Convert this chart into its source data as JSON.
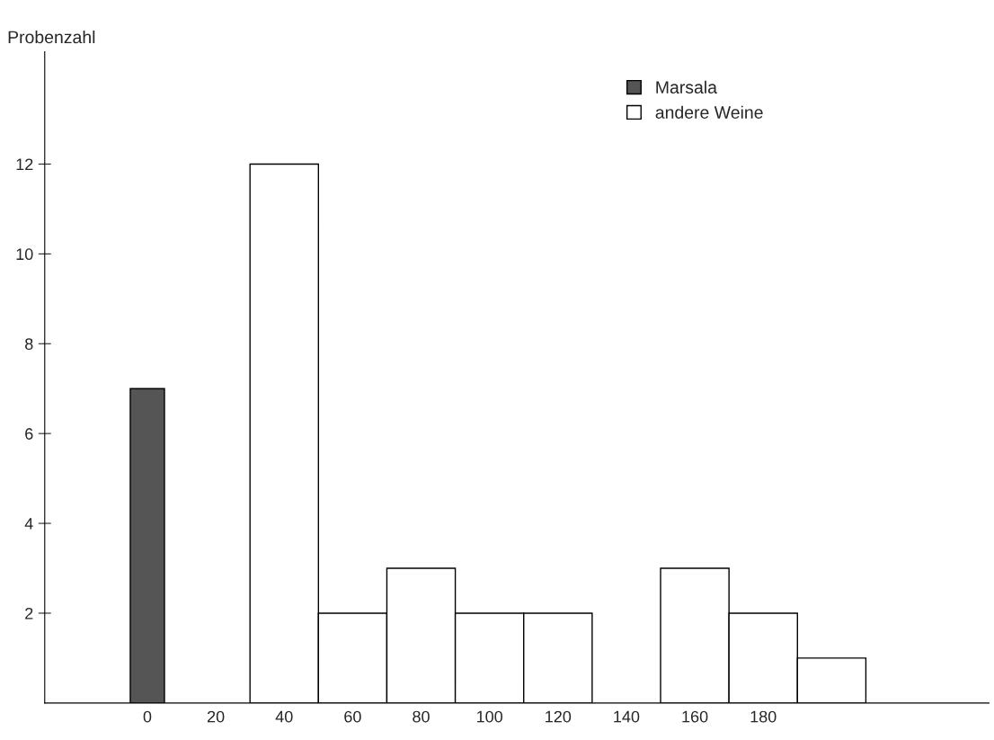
{
  "chart_data": {
    "type": "bar",
    "ylabel": "Probenzahl",
    "categories": [
      "0",
      "20",
      "40",
      "60",
      "80",
      "100",
      "120",
      "140",
      "160",
      "180",
      null
    ],
    "series": [
      {
        "name": "Marsala",
        "color": "#555555",
        "values": [
          7,
          null,
          null,
          null,
          null,
          null,
          null,
          null,
          null,
          null,
          null
        ]
      },
      {
        "name": "andere Weine",
        "color": "#ffffff",
        "values": [
          null,
          null,
          12,
          2,
          3,
          2,
          2,
          null,
          3,
          2,
          1
        ]
      }
    ],
    "ylim": [
      0,
      14.5
    ],
    "yticks": [
      2,
      4,
      6,
      8,
      10,
      12
    ],
    "legend": "top right"
  }
}
